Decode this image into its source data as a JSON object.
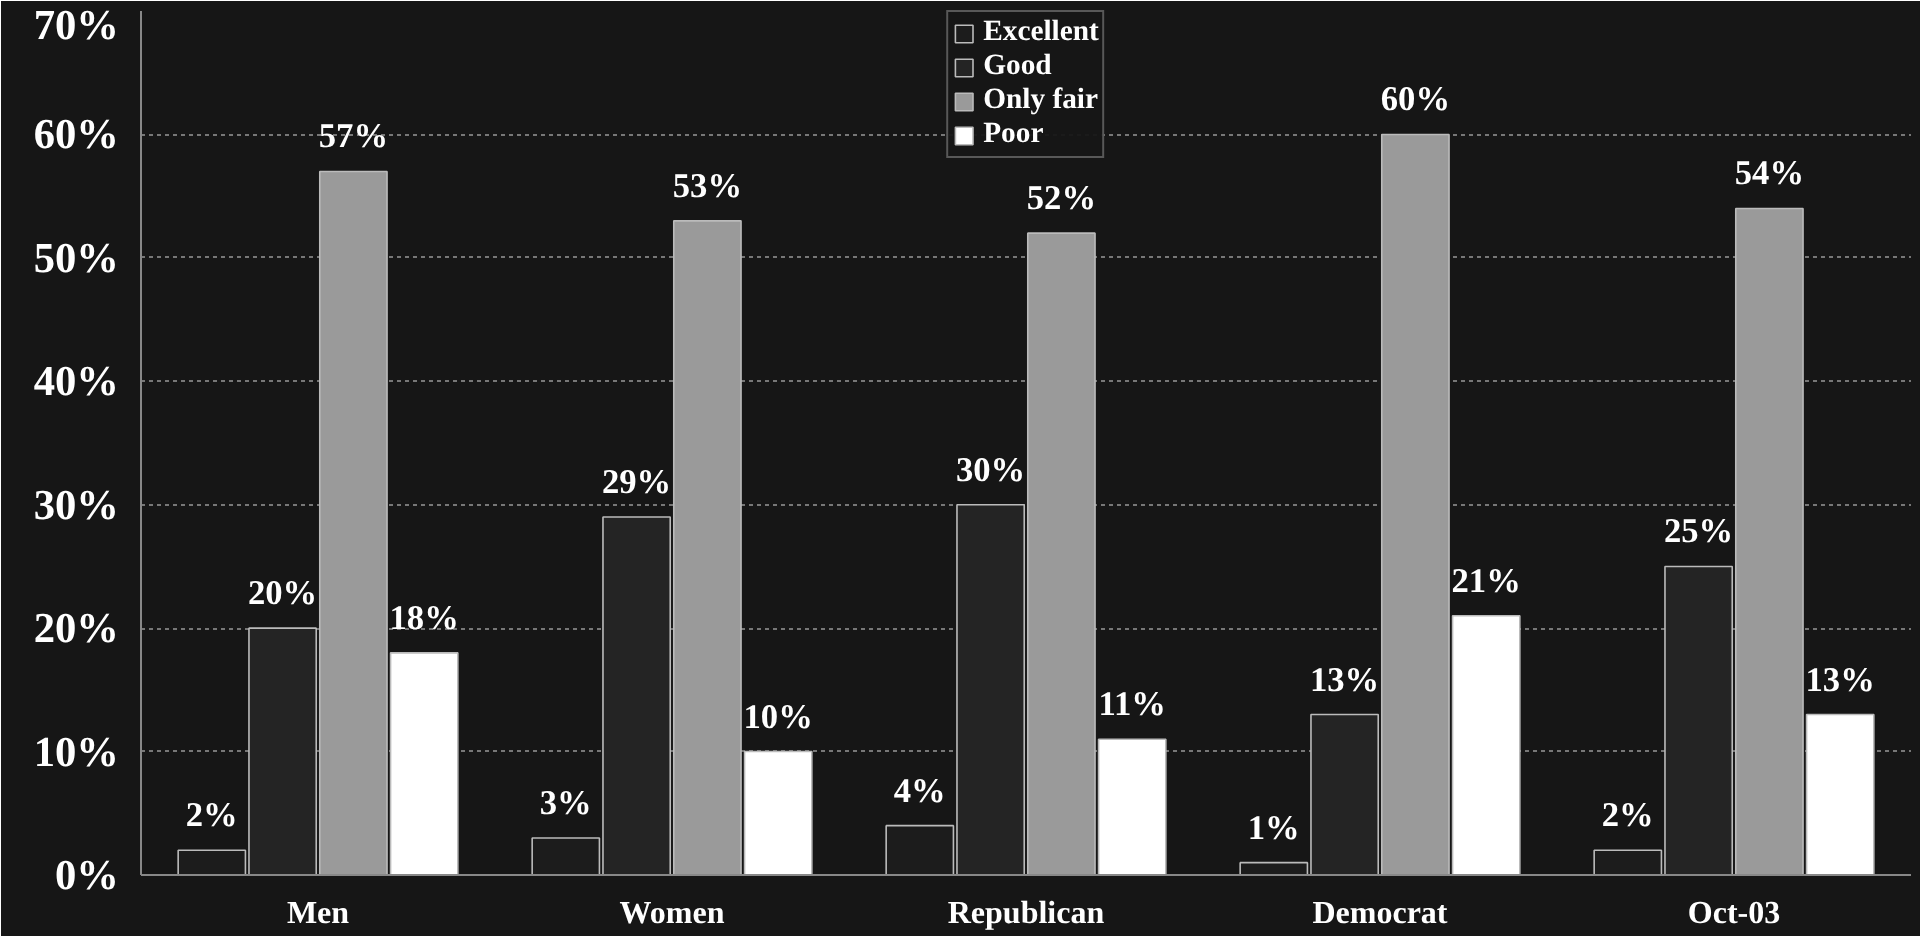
{
  "chart_data": {
    "type": "bar",
    "categories": [
      "Men",
      "Women",
      "Republican",
      "Democrat",
      "Oct-03"
    ],
    "series": [
      {
        "name": "Excellent",
        "color": "#1c1c1c",
        "values": [
          2,
          3,
          4,
          1,
          2
        ],
        "value_labels": [
          "2%",
          "3%",
          "4%",
          "1%",
          "2%"
        ]
      },
      {
        "name": "Good",
        "color": "#242424",
        "values": [
          20,
          29,
          30,
          13,
          25
        ],
        "value_labels": [
          "20%",
          "29%",
          "30%",
          "13%",
          "25%"
        ]
      },
      {
        "name": "Only fair",
        "color": "#9a9a9a",
        "values": [
          57,
          53,
          52,
          60,
          54
        ],
        "value_labels": [
          "57%",
          "53%",
          "52%",
          "60%",
          "54%"
        ]
      },
      {
        "name": "Poor",
        "color": "#ffffff",
        "values": [
          18,
          10,
          11,
          21,
          13
        ],
        "value_labels": [
          "18%",
          "10%",
          "11%",
          "21%",
          "13%"
        ]
      }
    ],
    "ylim": [
      0,
      70
    ],
    "yticks": [
      {
        "value": 0,
        "label": "0%"
      },
      {
        "value": 10,
        "label": "10%"
      },
      {
        "value": 20,
        "label": "20%"
      },
      {
        "value": 30,
        "label": "30%"
      },
      {
        "value": 40,
        "label": "40%"
      },
      {
        "value": 50,
        "label": "50%"
      },
      {
        "value": 60,
        "label": "60%"
      },
      {
        "value": 70,
        "label": "70%"
      }
    ],
    "grid": "y",
    "legend": "top"
  }
}
